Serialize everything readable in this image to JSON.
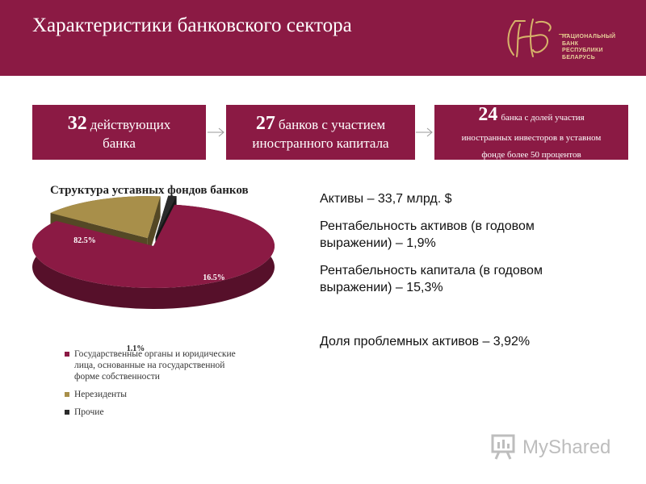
{
  "header": {
    "title": "Характеристики банковского сектора",
    "logo_lines": [
      "НАЦИОНАЛЬНЫЙ",
      "БАНК",
      "РЕСПУБЛИКИ",
      "БЕЛАРУСЬ"
    ],
    "background": "#8b1a44"
  },
  "boxes": [
    {
      "number": "32",
      "text_a": "действующих",
      "text_b": "банка"
    },
    {
      "number": "27",
      "text_a": "банков с участием",
      "text_b": "иностранного капитала"
    },
    {
      "number": "24",
      "text_a": "банка с долей участия",
      "text_b": "иностранных инвесторов в уставном",
      "text_c": "фонде более 50 процентов"
    }
  ],
  "chart_data": {
    "type": "pie",
    "title": "Структура уставных фондов банков",
    "slices": [
      {
        "label": "Государственные органы и юридические лица, основанные на государственной форме собственности",
        "value": 82.5,
        "value_label": "82.5%",
        "color": "#8b1a44"
      },
      {
        "label": "Нерезиденты",
        "value": 16.5,
        "value_label": "16.5%",
        "color": "#a88f4a"
      },
      {
        "label": "Прочие",
        "value": 1.1,
        "value_label": "1.1%",
        "color": "#2b2b2b"
      }
    ],
    "legend_position": "bottom"
  },
  "legend": {
    "items": [
      {
        "line1": "Государственные органы и юридические",
        "line2": "лица, основанные на государственной",
        "line3": "форме собственности",
        "color": "#8b1a44"
      },
      {
        "line1": "Нерезиденты",
        "color": "#a88f4a"
      },
      {
        "line1": "Прочие",
        "color": "#2b2b2b"
      }
    ]
  },
  "stats": [
    {
      "line1": "Активы – 33,7 млрд. $"
    },
    {
      "line1": "Рентабельность активов (в годовом",
      "line2": "выражении) – 1,9%"
    },
    {
      "line1": "Рентабельность капитала (в годовом",
      "line2": "выражении) – 15,3%"
    },
    {
      "line1": "Доля проблемных активов – 3,92%"
    }
  ],
  "watermark": {
    "text": "MyShared"
  }
}
